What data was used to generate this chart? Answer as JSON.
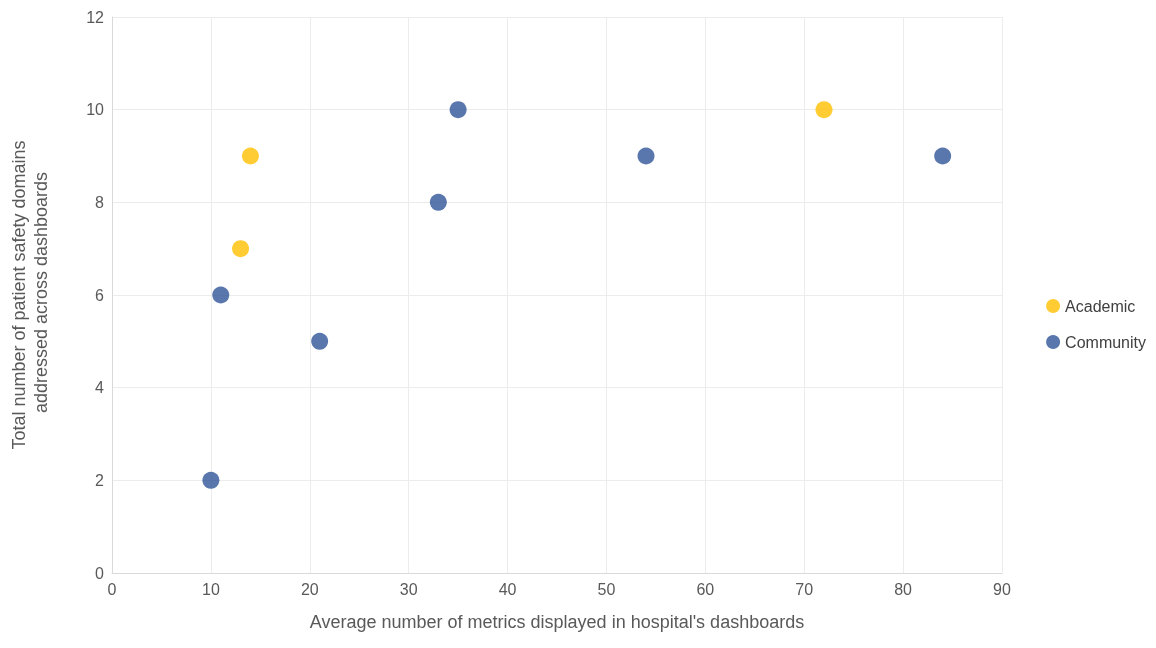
{
  "chart_data": {
    "type": "scatter",
    "xlabel": "Average number of metrics displayed in hospital's dashboards",
    "ylabel": "Total number of patient safety domains  addressed across dashboards",
    "series": [
      {
        "name": "Academic",
        "color": "#ffc000",
        "x": [
          14,
          13,
          72
        ],
        "values": [
          9,
          7,
          10
        ]
      },
      {
        "name": "Community",
        "color": "#2f5597",
        "x": [
          10,
          11,
          21,
          33,
          35,
          54,
          84
        ],
        "values": [
          2,
          6,
          5,
          8,
          10,
          9,
          9
        ]
      }
    ],
    "xlim": [
      0,
      90
    ],
    "xticks": [
      0,
      10,
      20,
      30,
      40,
      50,
      60,
      70,
      80,
      90
    ],
    "ylim": [
      0,
      12
    ],
    "yticks": [
      0,
      2,
      4,
      6,
      8,
      10,
      12
    ],
    "grid": true,
    "legend": "right",
    "marker": "circle"
  }
}
